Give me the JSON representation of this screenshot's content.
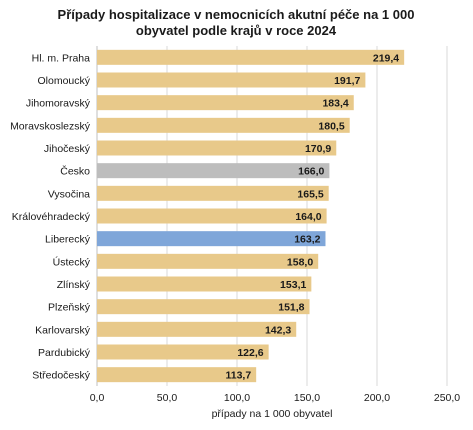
{
  "chart_data": {
    "type": "bar",
    "orientation": "horizontal",
    "title_lines": [
      "Případy hospitalizace v nemocnicích akutní péče na 1 000",
      "obyvatel podle krajů v roce 2024"
    ],
    "xlabel": "případy na 1 000 obyvatel",
    "ylabel": "",
    "xlim": [
      0,
      250
    ],
    "xticks": [
      "0,0",
      "50,0",
      "100,0",
      "150,0",
      "200,0",
      "250,0"
    ],
    "grid": "vertical",
    "categories": [
      "Hl. m. Praha",
      "Olomoucký",
      "Jihomoravský",
      "Moravskoslezský",
      "Jihočeský",
      "Česko",
      "Vysočina",
      "Královéhradecký",
      "Liberecký",
      "Ústecký",
      "Zlínský",
      "Plzeňský",
      "Karlovarský",
      "Pardubický",
      "Středočeský"
    ],
    "values": [
      219.4,
      191.7,
      183.4,
      180.5,
      170.9,
      166.0,
      165.5,
      164.0,
      163.2,
      158.0,
      153.1,
      151.8,
      142.3,
      122.6,
      113.7
    ],
    "value_labels": [
      "219,4",
      "191,7",
      "183,4",
      "180,5",
      "170,9",
      "166,0",
      "165,5",
      "164,0",
      "163,2",
      "158,0",
      "153,1",
      "151,8",
      "142,3",
      "122,6",
      "113,7"
    ],
    "colors": {
      "default": "#E8C98A",
      "Česko": "#BDBDBD",
      "Liberecký": "#7FA6D9",
      "grid": "#D9D9D9",
      "axis": "#BFBFBF"
    }
  }
}
